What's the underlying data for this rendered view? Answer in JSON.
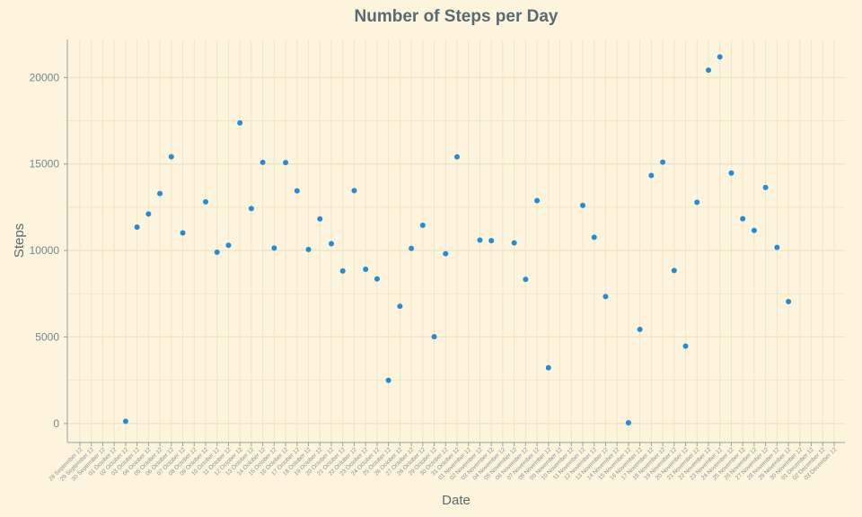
{
  "colors": {
    "background": "#fcf4dc",
    "grid": "#efe5c6",
    "point": "#268bd2",
    "axis": "#9aa0a0",
    "text": "#5b6a72"
  },
  "chart_data": {
    "type": "scatter",
    "title": "Number of Steps per Day",
    "xlabel": "Date",
    "ylabel": "Steps",
    "ylim": [
      -1100,
      22200
    ],
    "yticks": [
      0,
      5000,
      10000,
      15000,
      20000
    ],
    "grid": true,
    "legend": "none",
    "xticks": [
      "28 September 12",
      "29 September 12",
      "30 September 12",
      "01 October 12",
      "02 October 12",
      "03 October 12",
      "04 October 12",
      "05 October 12",
      "06 October 12",
      "07 October 12",
      "08 October 12",
      "09 October 12",
      "10 October 12",
      "11 October 12",
      "12 October 12",
      "13 October 12",
      "14 October 12",
      "15 October 12",
      "16 October 12",
      "17 October 12",
      "18 October 12",
      "19 October 12",
      "20 October 12",
      "21 October 12",
      "22 October 12",
      "23 October 12",
      "24 October 12",
      "25 October 12",
      "26 October 12",
      "27 October 12",
      "28 October 12",
      "29 October 12",
      "30 October 12",
      "31 October 12",
      "01 November 12",
      "02 November 12",
      "03 November 12",
      "04 November 12",
      "05 November 12",
      "06 November 12",
      "07 November 12",
      "08 November 12",
      "09 November 12",
      "10 November 12",
      "11 November 12",
      "12 November 12",
      "13 November 12",
      "14 November 12",
      "15 November 12",
      "16 November 12",
      "17 November 12",
      "18 November 12",
      "19 November 12",
      "20 November 12",
      "21 November 12",
      "22 November 12",
      "23 November 12",
      "24 November 12",
      "25 November 12",
      "26 November 12",
      "27 November 12",
      "28 November 12",
      "29 November 12",
      "30 November 12",
      "01 December 12",
      "02 December 12",
      "03 December 12"
    ],
    "points": [
      {
        "x": "02 October 12",
        "y": 126
      },
      {
        "x": "03 October 12",
        "y": 11352
      },
      {
        "x": "04 October 12",
        "y": 12116
      },
      {
        "x": "05 October 12",
        "y": 13294
      },
      {
        "x": "06 October 12",
        "y": 15420
      },
      {
        "x": "07 October 12",
        "y": 11015
      },
      {
        "x": "09 October 12",
        "y": 12811
      },
      {
        "x": "10 October 12",
        "y": 9900
      },
      {
        "x": "11 October 12",
        "y": 10304
      },
      {
        "x": "12 October 12",
        "y": 17382
      },
      {
        "x": "13 October 12",
        "y": 12426
      },
      {
        "x": "14 October 12",
        "y": 15098
      },
      {
        "x": "15 October 12",
        "y": 10139
      },
      {
        "x": "16 October 12",
        "y": 15084
      },
      {
        "x": "17 October 12",
        "y": 13452
      },
      {
        "x": "18 October 12",
        "y": 10056
      },
      {
        "x": "19 October 12",
        "y": 11829
      },
      {
        "x": "20 October 12",
        "y": 10395
      },
      {
        "x": "21 October 12",
        "y": 8821
      },
      {
        "x": "22 October 12",
        "y": 13460
      },
      {
        "x": "23 October 12",
        "y": 8918
      },
      {
        "x": "24 October 12",
        "y": 8355
      },
      {
        "x": "25 October 12",
        "y": 2492
      },
      {
        "x": "26 October 12",
        "y": 6778
      },
      {
        "x": "27 October 12",
        "y": 10119
      },
      {
        "x": "28 October 12",
        "y": 11458
      },
      {
        "x": "29 October 12",
        "y": 5018
      },
      {
        "x": "30 October 12",
        "y": 9819
      },
      {
        "x": "31 October 12",
        "y": 15414
      },
      {
        "x": "02 November 12",
        "y": 10600
      },
      {
        "x": "03 November 12",
        "y": 10571
      },
      {
        "x": "05 November 12",
        "y": 10439
      },
      {
        "x": "06 November 12",
        "y": 8334
      },
      {
        "x": "07 November 12",
        "y": 12883
      },
      {
        "x": "08 November 12",
        "y": 3219
      },
      {
        "x": "11 November 12",
        "y": 12608
      },
      {
        "x": "12 November 12",
        "y": 10765
      },
      {
        "x": "13 November 12",
        "y": 7336
      },
      {
        "x": "15 November 12",
        "y": 41
      },
      {
        "x": "16 November 12",
        "y": 5441
      },
      {
        "x": "17 November 12",
        "y": 14339
      },
      {
        "x": "18 November 12",
        "y": 15110
      },
      {
        "x": "19 November 12",
        "y": 8841
      },
      {
        "x": "20 November 12",
        "y": 4472
      },
      {
        "x": "21 November 12",
        "y": 12787
      },
      {
        "x": "22 November 12",
        "y": 20427
      },
      {
        "x": "23 November 12",
        "y": 21194
      },
      {
        "x": "24 November 12",
        "y": 14478
      },
      {
        "x": "25 November 12",
        "y": 11834
      },
      {
        "x": "26 November 12",
        "y": 11162
      },
      {
        "x": "27 November 12",
        "y": 13646
      },
      {
        "x": "28 November 12",
        "y": 10183
      },
      {
        "x": "29 November 12",
        "y": 7047
      }
    ]
  }
}
